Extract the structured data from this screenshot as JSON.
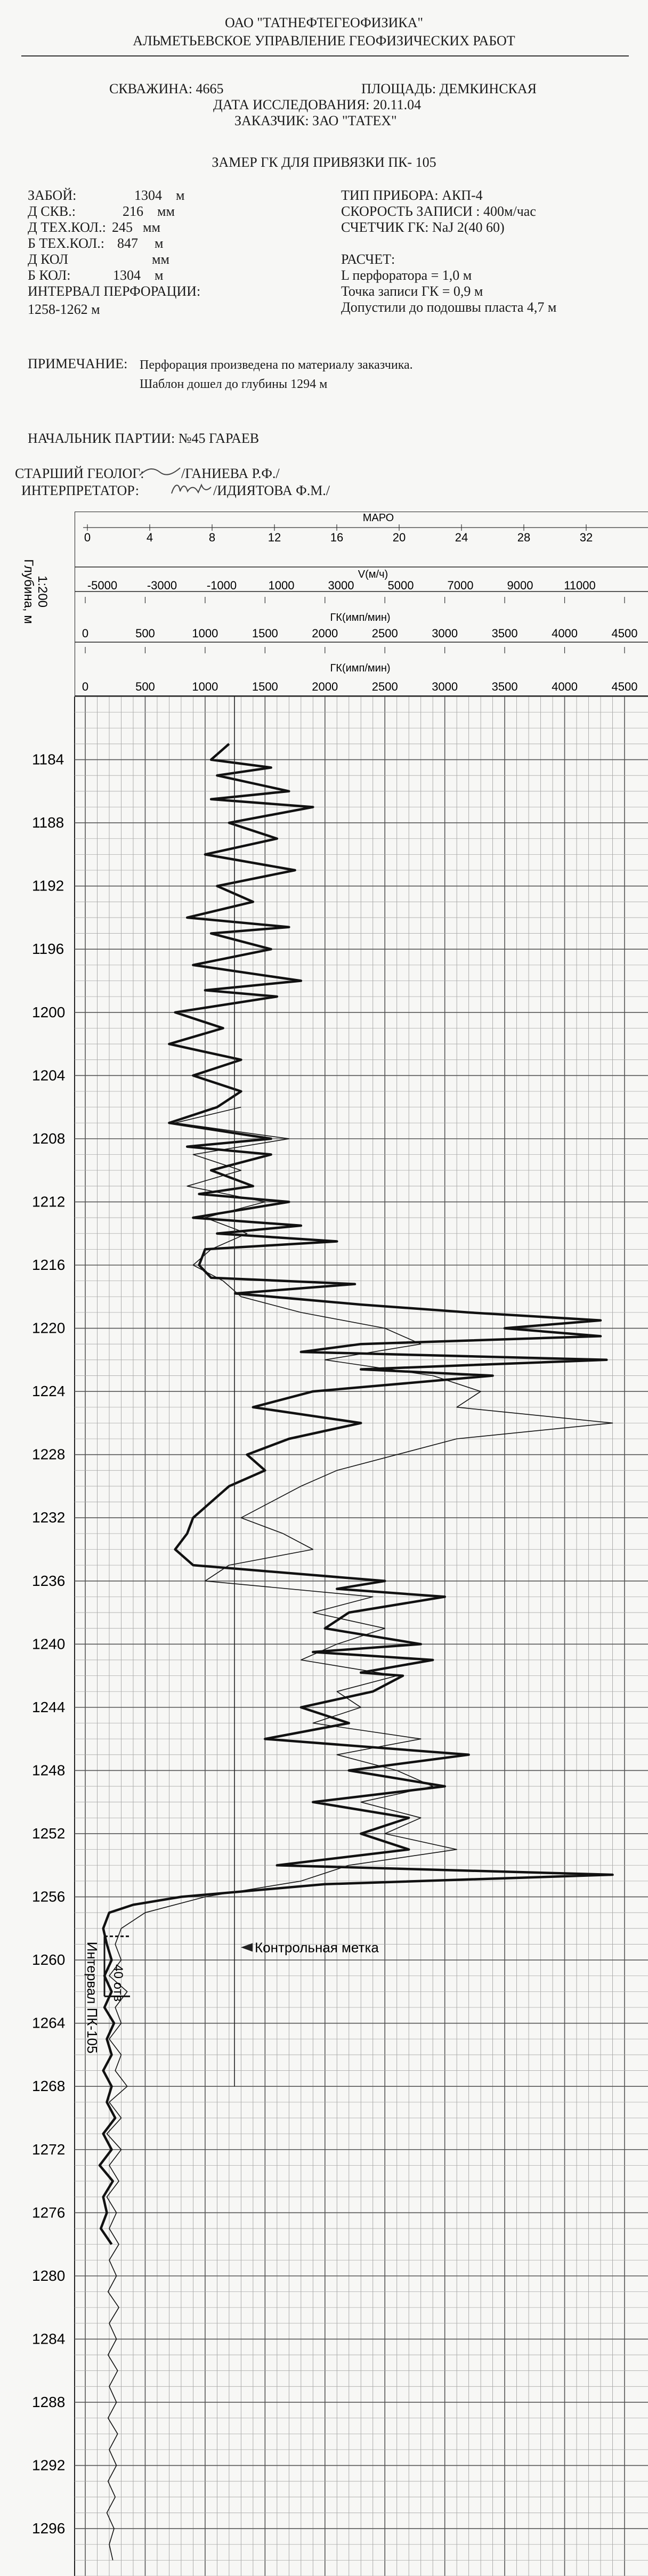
{
  "header": {
    "org": "ОАО \"ТАТНЕФТЕГЕОФИЗИКА\"",
    "dept": "АЛЬМЕТЬЕВСКОЕ УПРАВЛЕНИЕ ГЕОФИЗИЧЕСКИХ РАБОТ",
    "well": "СКВАЖИНА: 4665",
    "area": "ПЛОЩАДЬ: ДЕМКИНСКАЯ",
    "date": "ДАТА ИССЛЕДОВАНИЯ: 20.11.04",
    "customer": "ЗАКАЗЧИК: ЗАО \"ТАТЕХ\"",
    "title": "ЗАМЕР ГК ДЛЯ ПРИВЯЗКИ ПК- 105"
  },
  "params_left": [
    {
      "label": "ЗАБОЙ:",
      "value": "1304",
      "unit": "м"
    },
    {
      "label": "Д СКВ.:",
      "value": "216",
      "unit": "мм"
    },
    {
      "label": "Д ТЕХ.КОЛ.:",
      "value": "245",
      "unit": "мм"
    },
    {
      "label": "Б ТЕХ.КОЛ.:",
      "value": "847",
      "unit": "м"
    },
    {
      "label": "Д КОЛ",
      "value": "",
      "unit": "мм"
    },
    {
      "label": "Б КОЛ:",
      "value": "1304",
      "unit": "м"
    }
  ],
  "perforation_label": "ИНТЕРВАЛ ПЕРФОРАЦИИ:",
  "perforation_value": "1258-1262 м",
  "params_right": {
    "tool": "ТИП ПРИБОРА: АКП-4",
    "speed": "СКОРОСТЬ ЗАПИСИ : 400м/час",
    "counter": "СЧЕТЧИК ГК: NaJ 2(40 60)",
    "calc": "РАСЧЕТ:",
    "perf_len": "L перфоратора  = 1,0  м",
    "gk_point": "Точка записи ГК = 0,9  м",
    "allowed": "Допустили до подошвы пласта  4,7  м"
  },
  "note_label": "ПРИМЕЧАНИЕ:",
  "note_line1": "Перфорация произведена по материалу заказчика.",
  "note_line2": "Шаблон дошел до глубины   1294  м",
  "crew": {
    "chief": "НАЧАЛЬНИК ПАРТИИ:   №45  ГАРАЕВ",
    "geologist_label": "СТАРШИЙ ГЕОЛОГ:",
    "geologist_name": "/ГАНИЕВА  Р.Ф./",
    "interpreter_label": "ИНТЕРПРЕТАТОР:",
    "interpreter_name": "/ИДИЯТОВА Ф.М./"
  },
  "scales": {
    "depth_label_1": "Глубина, м",
    "depth_label_2": "1:200",
    "maro_label": "МАРО",
    "maro_ticks": [
      "0",
      "4",
      "8",
      "12",
      "16",
      "20",
      "24",
      "28",
      "32"
    ],
    "v_label": "V(м/ч)",
    "v_ticks": [
      "-5000",
      "-3000",
      "-1000",
      "1000",
      "3000",
      "5000",
      "7000",
      "9000",
      "11000"
    ],
    "gk_label": "ГК(имп/мин)",
    "gk_ticks": [
      "0",
      "500",
      "1000",
      "1500",
      "2000",
      "2500",
      "3000",
      "3500",
      "4000",
      "4500"
    ],
    "gk2_label": "ГК(имп/мин)",
    "gk2_ticks": [
      "0",
      "500",
      "1000",
      "1500",
      "2000",
      "2500",
      "3000",
      "3500",
      "4000",
      "4500"
    ]
  },
  "annotations": {
    "control_mark": "Контрольная метка",
    "interval": "Интервал ПК-105",
    "shots": "40 отв"
  },
  "chart_data": {
    "type": "line",
    "depth_ticks": [
      "1184",
      "1188",
      "1192",
      "1196",
      "1200",
      "1204",
      "1208",
      "1212",
      "1216",
      "1220",
      "1224",
      "1228",
      "1232",
      "1236",
      "1240",
      "1244",
      "1248",
      "1252",
      "1256",
      "1260",
      "1264",
      "1268",
      "1272",
      "1276",
      "1280",
      "1284",
      "1288",
      "1292",
      "1296"
    ],
    "depth_range": [
      1180,
      1299
    ],
    "gk_range": [
      0,
      4500
    ],
    "series": [
      {
        "style": "thick",
        "points": [
          [
            1183,
            1200
          ],
          [
            1184,
            1050
          ],
          [
            1184.5,
            1550
          ],
          [
            1185,
            1100
          ],
          [
            1186,
            1700
          ],
          [
            1186.5,
            1050
          ],
          [
            1187,
            1900
          ],
          [
            1188,
            1200
          ],
          [
            1189,
            1600
          ],
          [
            1190,
            1000
          ],
          [
            1191,
            1750
          ],
          [
            1192,
            1100
          ],
          [
            1193,
            1400
          ],
          [
            1194,
            850
          ],
          [
            1194.6,
            1700
          ],
          [
            1195,
            1050
          ],
          [
            1196,
            1550
          ],
          [
            1197,
            900
          ],
          [
            1198,
            1800
          ],
          [
            1198.6,
            1000
          ],
          [
            1199,
            1600
          ],
          [
            1200,
            750
          ],
          [
            1201,
            1150
          ],
          [
            1202,
            700
          ],
          [
            1203,
            1300
          ],
          [
            1204,
            900
          ],
          [
            1205,
            1300
          ],
          [
            1206,
            1100
          ],
          [
            1207,
            700
          ],
          [
            1208,
            1550
          ],
          [
            1208.5,
            850
          ],
          [
            1209,
            1550
          ],
          [
            1210,
            1050
          ],
          [
            1211,
            1400
          ],
          [
            1211.5,
            950
          ],
          [
            1212,
            1700
          ],
          [
            1213,
            900
          ],
          [
            1213.5,
            1800
          ],
          [
            1214,
            1100
          ],
          [
            1214.5,
            2100
          ],
          [
            1215,
            1000
          ],
          [
            1216,
            950
          ],
          [
            1216.8,
            1050
          ],
          [
            1217.2,
            2250
          ],
          [
            1217.8,
            1250
          ],
          [
            1218.5,
            2300
          ],
          [
            1219,
            3200
          ],
          [
            1219.5,
            4300
          ],
          [
            1220,
            3500
          ],
          [
            1220.5,
            4300
          ],
          [
            1221,
            2300
          ],
          [
            1221.5,
            1800
          ],
          [
            1222,
            4350
          ],
          [
            1222.6,
            2300
          ],
          [
            1223,
            3400
          ],
          [
            1224,
            1900
          ],
          [
            1225,
            1400
          ],
          [
            1226,
            2300
          ],
          [
            1227,
            1700
          ],
          [
            1228,
            1350
          ],
          [
            1229,
            1500
          ],
          [
            1230,
            1200
          ],
          [
            1231,
            1050
          ],
          [
            1232,
            900
          ],
          [
            1233,
            850
          ],
          [
            1234,
            750
          ],
          [
            1235,
            900
          ],
          [
            1236,
            2500
          ],
          [
            1236.5,
            2100
          ],
          [
            1237,
            3000
          ],
          [
            1238,
            2200
          ],
          [
            1239,
            2000
          ],
          [
            1240,
            2800
          ],
          [
            1240.5,
            1900
          ],
          [
            1241,
            2900
          ],
          [
            1241.8,
            2300
          ],
          [
            1242,
            2650
          ],
          [
            1243,
            2400
          ],
          [
            1244,
            1800
          ],
          [
            1245,
            2200
          ],
          [
            1246,
            1500
          ],
          [
            1247,
            3200
          ],
          [
            1248,
            2200
          ],
          [
            1249,
            3000
          ],
          [
            1250,
            1900
          ],
          [
            1251,
            2700
          ],
          [
            1252,
            2300
          ],
          [
            1253,
            2700
          ],
          [
            1254,
            1600
          ],
          [
            1254.6,
            4400
          ],
          [
            1255.2,
            2000
          ],
          [
            1256,
            800
          ],
          [
            1256.5,
            400
          ],
          [
            1257,
            200
          ],
          [
            1258,
            150
          ],
          [
            1259,
            180
          ],
          [
            1260,
            220
          ],
          [
            1261,
            160
          ],
          [
            1262,
            220
          ],
          [
            1263,
            160
          ],
          [
            1264,
            240
          ],
          [
            1265,
            180
          ],
          [
            1266,
            220
          ],
          [
            1267,
            150
          ],
          [
            1268,
            220
          ],
          [
            1269,
            180
          ],
          [
            1270,
            250
          ],
          [
            1271,
            150
          ],
          [
            1272,
            220
          ],
          [
            1273,
            120
          ],
          [
            1274,
            230
          ],
          [
            1275,
            150
          ],
          [
            1276,
            180
          ],
          [
            1277,
            130
          ],
          [
            1278,
            220
          ]
        ]
      },
      {
        "style": "thin",
        "points": [
          [
            1206,
            1300
          ],
          [
            1207,
            750
          ],
          [
            1208,
            1700
          ],
          [
            1209,
            900
          ],
          [
            1210,
            1300
          ],
          [
            1211,
            850
          ],
          [
            1212,
            1500
          ],
          [
            1213,
            1000
          ],
          [
            1214,
            1350
          ],
          [
            1215,
            1050
          ],
          [
            1216,
            900
          ],
          [
            1217,
            1150
          ],
          [
            1218,
            1300
          ],
          [
            1219,
            1800
          ],
          [
            1220,
            2500
          ],
          [
            1221,
            2800
          ],
          [
            1222,
            2000
          ],
          [
            1223,
            2900
          ],
          [
            1224,
            3300
          ],
          [
            1225,
            3100
          ],
          [
            1226,
            4400
          ],
          [
            1227,
            3100
          ],
          [
            1228,
            2600
          ],
          [
            1229,
            2100
          ],
          [
            1230,
            1800
          ],
          [
            1231,
            1550
          ],
          [
            1232,
            1300
          ],
          [
            1233,
            1650
          ],
          [
            1234,
            1900
          ],
          [
            1235,
            1200
          ],
          [
            1236,
            1000
          ],
          [
            1237,
            2400
          ],
          [
            1238,
            1900
          ],
          [
            1239,
            2500
          ],
          [
            1240,
            2100
          ],
          [
            1241,
            1800
          ],
          [
            1242,
            2600
          ],
          [
            1243,
            2100
          ],
          [
            1244,
            2300
          ],
          [
            1245,
            1900
          ],
          [
            1246,
            2800
          ],
          [
            1247,
            2100
          ],
          [
            1248,
            2600
          ],
          [
            1249,
            2900
          ],
          [
            1250,
            2300
          ],
          [
            1251,
            2800
          ],
          [
            1252,
            2500
          ],
          [
            1253,
            3100
          ],
          [
            1254,
            2200
          ],
          [
            1255,
            1800
          ],
          [
            1256,
            1000
          ],
          [
            1257,
            500
          ],
          [
            1258,
            300
          ],
          [
            1259,
            250
          ],
          [
            1260,
            300
          ],
          [
            1261,
            200
          ],
          [
            1262,
            350
          ],
          [
            1263,
            250
          ],
          [
            1264,
            300
          ],
          [
            1265,
            200
          ],
          [
            1266,
            300
          ],
          [
            1267,
            250
          ],
          [
            1268,
            350
          ],
          [
            1269,
            200
          ],
          [
            1270,
            300
          ],
          [
            1271,
            180
          ],
          [
            1272,
            300
          ],
          [
            1273,
            200
          ],
          [
            1274,
            280
          ],
          [
            1275,
            180
          ],
          [
            1276,
            260
          ],
          [
            1277,
            200
          ],
          [
            1278,
            280
          ],
          [
            1279,
            200
          ],
          [
            1280,
            260
          ],
          [
            1281,
            190
          ],
          [
            1282,
            280
          ],
          [
            1283,
            200
          ],
          [
            1284,
            260
          ],
          [
            1285,
            190
          ],
          [
            1286,
            270
          ],
          [
            1287,
            200
          ],
          [
            1288,
            260
          ],
          [
            1289,
            190
          ],
          [
            1290,
            270
          ],
          [
            1291,
            200
          ],
          [
            1292,
            260
          ],
          [
            1293,
            190
          ],
          [
            1294,
            250
          ],
          [
            1295,
            180
          ],
          [
            1296,
            240
          ],
          [
            1297,
            200
          ],
          [
            1298,
            230
          ]
        ]
      }
    ],
    "markers": {
      "control_mark_depth": 1259.2,
      "interval_top": 1258.5,
      "interval_bottom": 1262.3
    }
  }
}
